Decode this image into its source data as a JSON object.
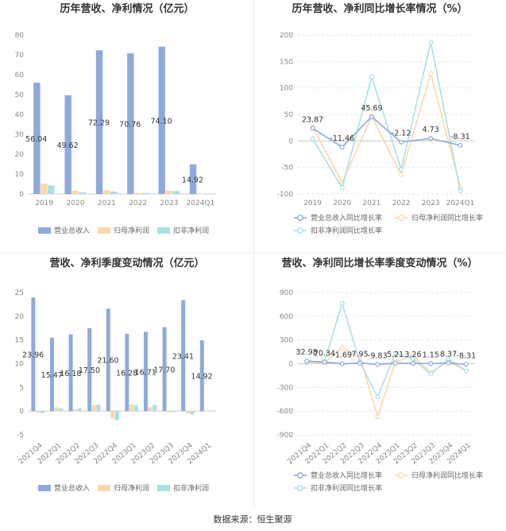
{
  "colors": {
    "revenue": "#8eaadc",
    "revenue_line": "#8eaadc",
    "net_profit": "#fbd9a8",
    "deducted_profit": "#a8e0e6",
    "grid": "#e6e6e6",
    "divider": "#eeeeee"
  },
  "source": "数据来源：恒生聚源",
  "chart_data": [
    {
      "type": "bar",
      "title": "历年营收、净利情况（亿元）",
      "categories": [
        "2019",
        "2020",
        "2021",
        "2022",
        "2023",
        "2024Q1"
      ],
      "ylim": [
        0,
        80
      ],
      "yticks": [
        0,
        10,
        20,
        30,
        40,
        50,
        60,
        70,
        80
      ],
      "grid": false,
      "legend": "bottom",
      "series": [
        {
          "name": "营业总收入",
          "values": [
            56.04,
            49.62,
            72.29,
            70.76,
            74.1,
            14.92
          ]
        },
        {
          "name": "归母净利润",
          "values": [
            5.2,
            1.6,
            1.8,
            0.6,
            1.7,
            0.1
          ]
        },
        {
          "name": "扣非净利润",
          "values": [
            4.3,
            0.9,
            1.2,
            0.5,
            1.5,
            0.1
          ]
        }
      ],
      "data_labels": [
        "56.04",
        "49.62",
        "72.29",
        "70.76",
        "74.10",
        "14.92"
      ]
    },
    {
      "type": "line",
      "title": "历年营收、净利同比增长率情况（%）",
      "categories": [
        "2019",
        "2020",
        "2021",
        "2022",
        "2023",
        "2024Q1"
      ],
      "ylim": [
        -100,
        200
      ],
      "yticks": [
        -100,
        -50,
        0,
        50,
        100,
        150,
        200
      ],
      "grid": true,
      "legend": "bottom",
      "series": [
        {
          "name": "营业总收入同比增长率",
          "values": [
            23.87,
            -11.46,
            45.69,
            -2.12,
            4.73,
            -8.31
          ]
        },
        {
          "name": "归母净利润同比增长率",
          "values": [
            27,
            -79,
            46,
            -64,
            127,
            -87
          ]
        },
        {
          "name": "扣非净利润同比增长率",
          "values": [
            4,
            -88,
            121,
            -54,
            186,
            -94
          ]
        }
      ],
      "data_labels": [
        "23.87",
        "-11.46",
        "45.69",
        "-2.12",
        "4.73",
        "-8.31"
      ]
    },
    {
      "type": "bar",
      "title": "营收、净利季度变动情况（亿元）",
      "categories": [
        "2021Q4",
        "2022Q1",
        "2022Q2",
        "2022Q3",
        "2022Q4",
        "2023Q1",
        "2023Q2",
        "2023Q3",
        "2023Q4",
        "2024Q1"
      ],
      "ylim": [
        -5,
        25
      ],
      "yticks": [
        -5,
        0,
        5,
        10,
        15,
        20,
        25
      ],
      "grid": false,
      "legend": "bottom",
      "series": [
        {
          "name": "营业总收入",
          "values": [
            23.96,
            15.47,
            16.18,
            17.5,
            21.6,
            16.28,
            16.71,
            17.7,
            23.41,
            14.92
          ]
        },
        {
          "name": "归母净利润",
          "values": [
            -0.3,
            0.8,
            0.4,
            1.3,
            -1.6,
            1.5,
            0.8,
            -0.3,
            -0.5,
            0.1
          ]
        },
        {
          "name": "扣非净利润",
          "values": [
            -0.4,
            0.6,
            0.6,
            1.3,
            -1.9,
            1.3,
            1.3,
            -0.2,
            -0.7,
            0.05
          ]
        }
      ],
      "data_labels": [
        "23.96",
        "15.47",
        "16.18",
        "17.50",
        "21.60",
        "16.28",
        "16.71",
        "17.70",
        "23.41",
        "14.92"
      ]
    },
    {
      "type": "line",
      "title": "营收、净利同比增长率季度变动情况（%）",
      "categories": [
        "2021Q4",
        "2022Q1",
        "2022Q2",
        "2022Q3",
        "2022Q4",
        "2023Q1",
        "2023Q2",
        "2023Q3",
        "2023Q4",
        "2024Q1"
      ],
      "ylim": [
        -900,
        900
      ],
      "yticks": [
        -900,
        -600,
        -300,
        0,
        300,
        600,
        900
      ],
      "grid": true,
      "legend": "bottom",
      "series": [
        {
          "name": "营业总收入同比增长率",
          "values": [
            32.98,
            20.34,
            -1.69,
            7.95,
            -9.83,
            5.21,
            3.26,
            1.15,
            8.37,
            -8.31
          ]
        },
        {
          "name": "归母净利润同比增长率",
          "values": [
            10,
            10,
            200,
            90,
            -670,
            20,
            100,
            -110,
            30,
            -90
          ]
        },
        {
          "name": "扣非净利润同比增长率",
          "values": [
            20,
            30,
            760,
            20,
            -420,
            130,
            60,
            -130,
            60,
            -90
          ]
        }
      ],
      "data_labels": [
        "32.98",
        "20.34",
        "-1.69",
        "7.95",
        "-9.83",
        "5.21",
        "3.26",
        "1.15",
        "8.37",
        "-8.31"
      ]
    }
  ]
}
